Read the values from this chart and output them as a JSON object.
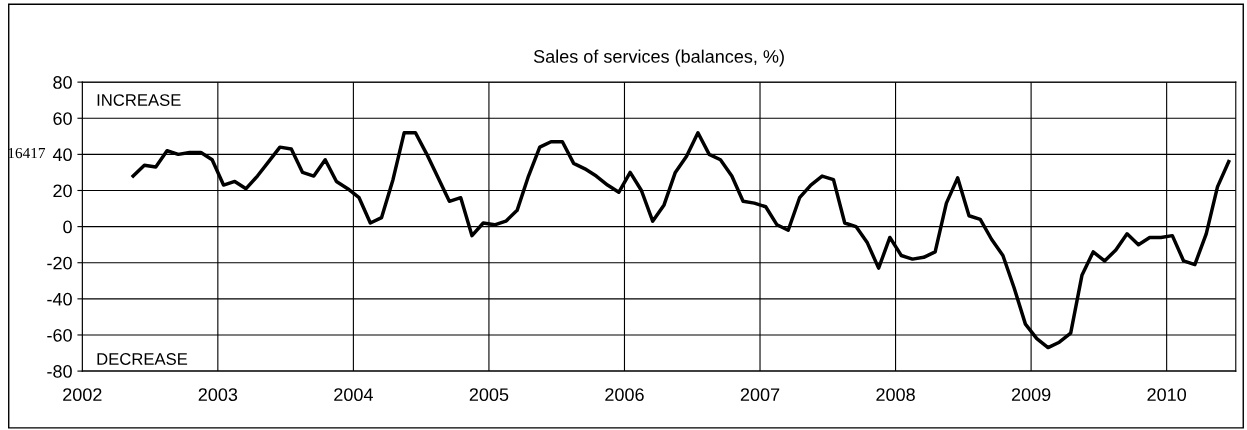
{
  "chart_data": {
    "type": "line",
    "title": "Sales of services (balances, %)",
    "x": [
      2002.375,
      2002.458,
      2002.542,
      2002.625,
      2002.708,
      2002.792,
      2002.875,
      2002.958,
      2003.042,
      2003.125,
      2003.208,
      2003.292,
      2003.375,
      2003.458,
      2003.542,
      2003.625,
      2003.708,
      2003.792,
      2003.875,
      2003.958,
      2004.042,
      2004.125,
      2004.208,
      2004.292,
      2004.375,
      2004.458,
      2004.542,
      2004.625,
      2004.708,
      2004.792,
      2004.875,
      2004.958,
      2005.042,
      2005.125,
      2005.208,
      2005.292,
      2005.375,
      2005.458,
      2005.542,
      2005.625,
      2005.708,
      2005.792,
      2005.875,
      2005.958,
      2006.042,
      2006.125,
      2006.208,
      2006.292,
      2006.375,
      2006.458,
      2006.542,
      2006.625,
      2006.708,
      2006.792,
      2006.875,
      2006.958,
      2007.042,
      2007.125,
      2007.208,
      2007.292,
      2007.375,
      2007.458,
      2007.542,
      2007.625,
      2007.708,
      2007.792,
      2007.875,
      2007.958,
      2008.042,
      2008.125,
      2008.208,
      2008.292,
      2008.375,
      2008.458,
      2008.542,
      2008.625,
      2008.708,
      2008.792,
      2008.875,
      2008.958,
      2009.042,
      2009.125,
      2009.208,
      2009.292,
      2009.375,
      2009.458,
      2009.542,
      2009.625,
      2009.708,
      2009.792,
      2009.875,
      2009.958,
      2010.042,
      2010.125,
      2010.208,
      2010.292,
      2010.375,
      2010.458
    ],
    "series": [
      {
        "color": "#000000",
        "values": [
          28,
          34,
          33,
          42,
          40,
          41,
          41,
          37,
          23,
          25,
          21,
          28,
          36,
          44,
          43,
          30,
          28,
          37,
          25,
          21,
          16,
          2,
          5,
          26,
          52,
          52,
          40,
          27,
          14,
          16,
          -5,
          2,
          1,
          3,
          9,
          28,
          44,
          47,
          47,
          35,
          32,
          28,
          23,
          19,
          30,
          20,
          3,
          12,
          30,
          39,
          52,
          40,
          37,
          28,
          14,
          13,
          11,
          1,
          -2,
          16,
          23,
          28,
          26,
          2,
          0,
          -9,
          -23,
          -6,
          -16,
          -18,
          -17,
          -14,
          13,
          27,
          6,
          4,
          -7,
          -16,
          -34,
          -54,
          -62,
          -67,
          -64,
          -59,
          -27,
          -14,
          -19,
          -13,
          -4,
          -10,
          -6,
          -6,
          -5,
          -19,
          -21,
          -4,
          22,
          36
        ]
      }
    ],
    "xlim": [
      2002,
      2010.51
    ],
    "xticks": [
      2002,
      2003,
      2004,
      2005,
      2006,
      2007,
      2008,
      2009,
      2010
    ],
    "ylim": [
      -80,
      80
    ],
    "yticks": [
      -80,
      -60,
      -40,
      -20,
      0,
      20,
      40,
      60,
      80
    ],
    "grid": true,
    "legend": false,
    "marker": "none",
    "line_style": "solid",
    "annotations": [
      "INCREASE",
      "DECREASE",
      "16417"
    ]
  }
}
